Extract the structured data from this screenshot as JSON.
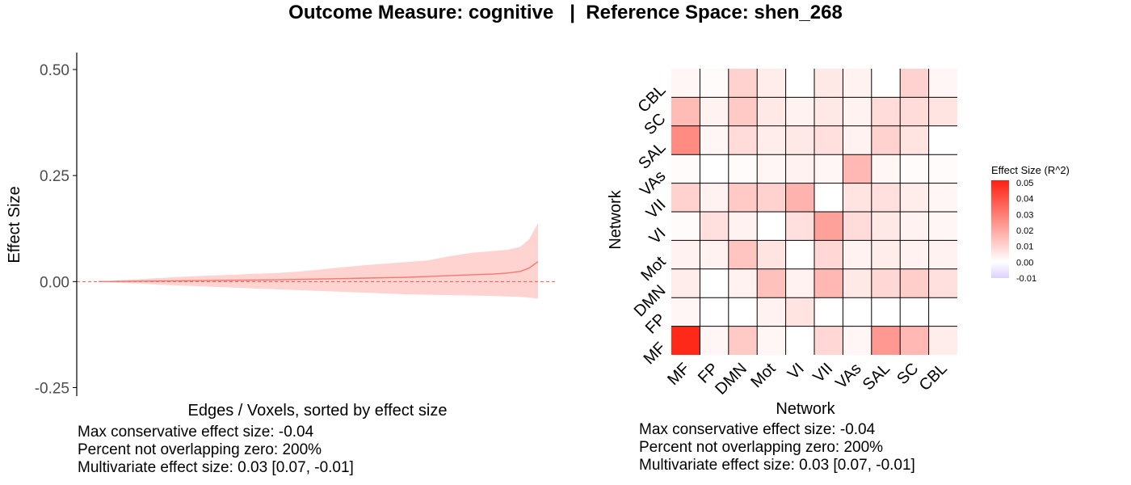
{
  "title": "Outcome Measure: cognitive   |  Reference Space: shen_268",
  "colors": {
    "line": "#f8766d",
    "ribbon": "#ffd3d0",
    "zero_line": "#e06050",
    "heat_high": "#ff2010",
    "heat_mid": "#ffffff",
    "heat_low": "#ddd0ff"
  },
  "chart_data": [
    {
      "type": "area",
      "xlabel": "Edges / Voxels, sorted by effect size",
      "ylabel": "Effect Size",
      "ylim": [
        -0.27,
        0.54
      ],
      "yticks": [
        -0.25,
        0.0,
        0.25,
        0.5
      ],
      "ytick_labels": [
        "-0.25",
        "0.00",
        "0.25",
        "0.50"
      ],
      "reference_line": 0,
      "x": [
        0,
        0.05,
        0.1,
        0.15,
        0.2,
        0.25,
        0.3,
        0.35,
        0.4,
        0.45,
        0.5,
        0.55,
        0.6,
        0.65,
        0.7,
        0.75,
        0.8,
        0.85,
        0.9,
        0.93,
        0.96,
        0.98,
        1.0
      ],
      "series": [
        {
          "values": [
            0,
            0.0005,
            0.001,
            0.0015,
            0.002,
            0.0025,
            0.003,
            0.0035,
            0.004,
            0.005,
            0.006,
            0.007,
            0.008,
            0.009,
            0.01,
            0.012,
            0.014,
            0.016,
            0.018,
            0.02,
            0.024,
            0.032,
            0.047
          ],
          "lower": [
            0,
            -0.003,
            -0.005,
            -0.008,
            -0.01,
            -0.012,
            -0.014,
            -0.016,
            -0.018,
            -0.02,
            -0.022,
            -0.024,
            -0.026,
            -0.028,
            -0.03,
            -0.031,
            -0.032,
            -0.033,
            -0.034,
            -0.035,
            -0.036,
            -0.038,
            -0.04
          ],
          "upper": [
            0,
            0.003,
            0.006,
            0.009,
            0.012,
            0.014,
            0.016,
            0.018,
            0.02,
            0.023,
            0.028,
            0.033,
            0.038,
            0.042,
            0.046,
            0.05,
            0.06,
            0.068,
            0.072,
            0.075,
            0.082,
            0.1,
            0.138
          ]
        }
      ]
    },
    {
      "type": "heatmap",
      "xlabel": "Network",
      "ylabel": "Network",
      "x_categories": [
        "MF",
        "FP",
        "DMN",
        "Mot",
        "VI",
        "VII",
        "VAs",
        "SAL",
        "SC",
        "CBL"
      ],
      "y_categories": [
        "MF",
        "FP",
        "DMN",
        "Mot",
        "VI",
        "VII",
        "VAs",
        "SAL",
        "SC",
        "CBL"
      ],
      "legend_title": "Effect Size (R^2)",
      "legend_ticks": [
        0.05,
        0.04,
        0.03,
        0.02,
        0.01,
        0.0,
        -0.01
      ],
      "legend_tick_labels": [
        "0.05",
        "0.04",
        "0.03",
        "0.02",
        "0.01",
        "0.00",
        "-0.01"
      ],
      "legend_range": [
        -0.01,
        0.05
      ],
      "values": [
        [
          0.048,
          0.002,
          0.012,
          0.002,
          0.0,
          0.009,
          0.002,
          0.023,
          0.016,
          0.004
        ],
        [
          0.002,
          0.0,
          0.0,
          0.003,
          0.006,
          0.0,
          0.0,
          0.0,
          0.0,
          0.0
        ],
        [
          0.004,
          0.0,
          0.003,
          0.014,
          0.003,
          0.016,
          0.005,
          0.009,
          0.011,
          0.007
        ],
        [
          0.003,
          0.003,
          0.013,
          0.006,
          0.0,
          0.009,
          0.003,
          0.004,
          0.003,
          0.003
        ],
        [
          0.001,
          0.007,
          0.003,
          0.0,
          0.007,
          0.021,
          0.008,
          0.005,
          0.003,
          0.002
        ],
        [
          0.01,
          0.003,
          0.012,
          0.01,
          0.017,
          0.0,
          0.006,
          0.007,
          0.004,
          0.002
        ],
        [
          0.001,
          0.0,
          0.001,
          0.002,
          0.003,
          0.002,
          0.016,
          0.002,
          0.001,
          0.001
        ],
        [
          0.026,
          0.002,
          0.008,
          0.004,
          0.005,
          0.007,
          0.003,
          0.01,
          0.006,
          0.0
        ],
        [
          0.015,
          0.003,
          0.012,
          0.005,
          0.003,
          0.005,
          0.003,
          0.008,
          0.008,
          0.006
        ],
        [
          0.002,
          0.001,
          0.01,
          0.004,
          0.0,
          0.005,
          0.003,
          0.0,
          0.01,
          0.002
        ]
      ]
    }
  ],
  "stats_left": {
    "line1": "Max conservative effect size: -0.04",
    "line2": "Percent not overlapping zero: 200%",
    "line3": "Multivariate effect size: 0.03 [0.07, -0.01]"
  },
  "stats_right": {
    "line1": "Max conservative effect size: -0.04",
    "line2": "Percent not overlapping zero: 200%",
    "line3": "Multivariate effect size: 0.03 [0.07, -0.01]"
  }
}
